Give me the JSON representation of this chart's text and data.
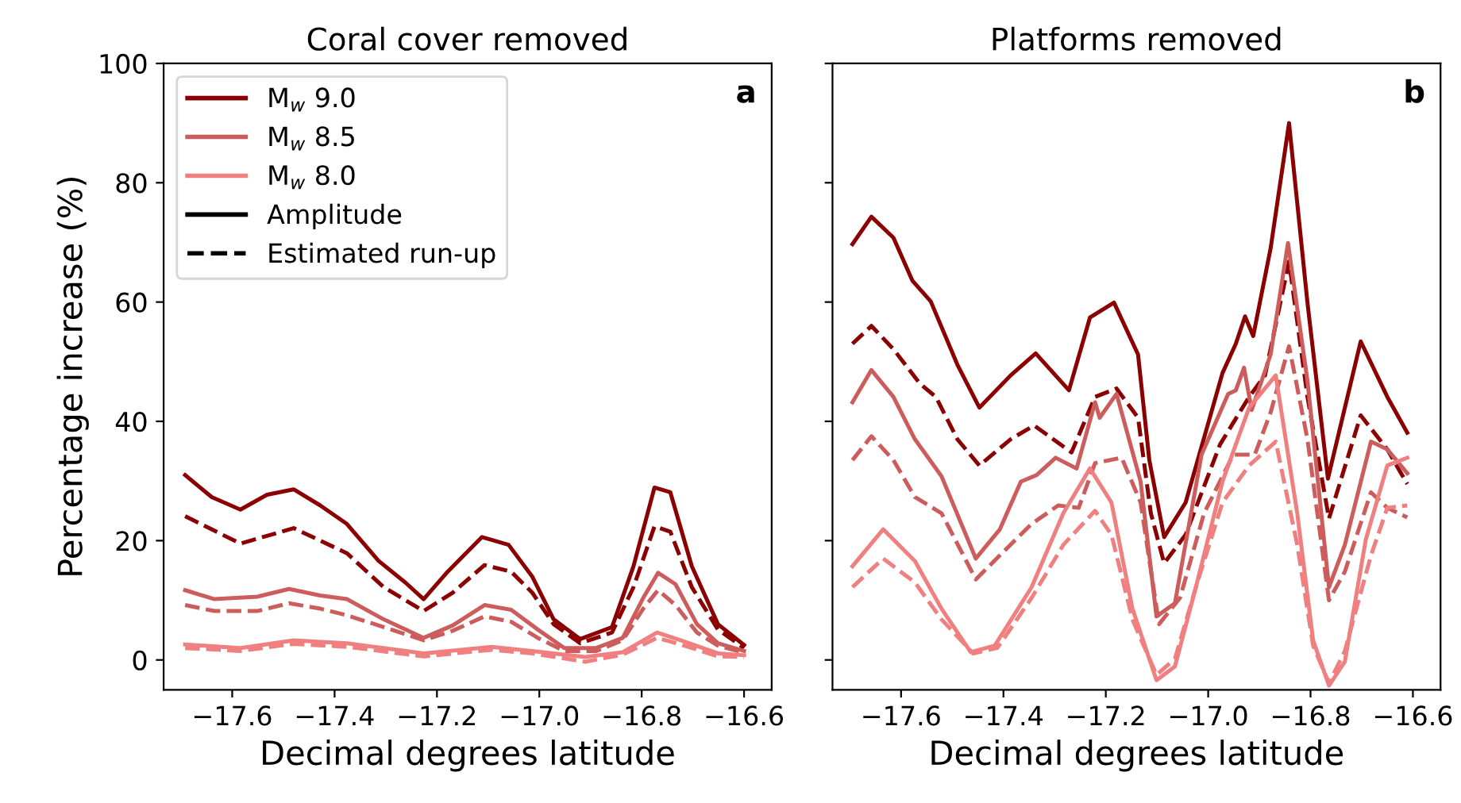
{
  "chart_data": [
    {
      "type": "line",
      "title": "Coral cover removed",
      "xlabel": "Decimal degrees latitude",
      "ylabel": "Percentage increase (%)",
      "xlim": [
        -17.734,
        -16.546
      ],
      "ylim": [
        -5,
        100
      ],
      "xticks": [
        {
          "value": -17.6,
          "label": "−17.6"
        },
        {
          "value": -17.4,
          "label": "−17.4"
        },
        {
          "value": -17.2,
          "label": "−17.2"
        },
        {
          "value": -17.0,
          "label": "−17.0"
        },
        {
          "value": -16.8,
          "label": "−16.8"
        },
        {
          "value": -16.6,
          "label": "−16.6"
        }
      ],
      "yticks": [
        0,
        20,
        40,
        60,
        80,
        100
      ],
      "grid": false,
      "legend": "top left",
      "annotations": [
        "a",
        "Amplitude",
        "Estimated run-up"
      ],
      "series": [
        {
          "name": "M$_{w}$ 9.0",
          "color": "#8b0000",
          "line_style": "solid",
          "x": [
            -17.692,
            -17.64,
            -17.584,
            -17.532,
            -17.48,
            -17.428,
            -17.376,
            -17.314,
            -17.262,
            -17.226,
            -17.179,
            -17.112,
            -17.06,
            -17.014,
            -16.972,
            -16.92,
            -16.858,
            -16.816,
            -16.775,
            -16.744,
            -16.702,
            -16.651,
            -16.6
          ],
          "values": [
            31.0,
            27.3,
            25.2,
            27.7,
            28.6,
            25.9,
            22.8,
            16.6,
            13.0,
            10.2,
            14.8,
            20.6,
            19.3,
            14.0,
            6.8,
            3.5,
            5.5,
            15.7,
            28.9,
            28.1,
            15.7,
            6.0,
            2.5
          ]
        },
        {
          "color": "#8b0000",
          "line_style": "dashed",
          "x": [
            -17.692,
            -17.584,
            -17.48,
            -17.376,
            -17.304,
            -17.226,
            -17.169,
            -17.107,
            -17.055,
            -17.014,
            -16.972,
            -16.92,
            -16.858,
            -16.816,
            -16.775,
            -16.744,
            -16.702,
            -16.651,
            -16.6
          ],
          "values": [
            24.1,
            19.5,
            22.1,
            17.9,
            12.2,
            8.2,
            11.3,
            15.9,
            14.8,
            11.3,
            6.0,
            2.8,
            4.6,
            12.2,
            22.4,
            21.5,
            12.2,
            5.1,
            2.0
          ]
        },
        {
          "name": "M$_{w}$ 8.5",
          "color": "#cd5c5c",
          "line_style": "solid",
          "x": [
            -17.692,
            -17.635,
            -17.551,
            -17.489,
            -17.428,
            -17.376,
            -17.304,
            -17.226,
            -17.169,
            -17.107,
            -17.055,
            -17.003,
            -16.951,
            -16.889,
            -16.837,
            -16.797,
            -16.768,
            -16.734,
            -16.692,
            -16.651,
            -16.6
          ],
          "values": [
            11.7,
            10.2,
            10.6,
            11.9,
            10.8,
            10.2,
            6.8,
            3.7,
            5.8,
            9.2,
            8.4,
            5.1,
            2.0,
            2.0,
            3.7,
            10.4,
            14.6,
            12.7,
            6.0,
            2.8,
            1.5
          ]
        },
        {
          "color": "#cd5c5c",
          "line_style": "dashed",
          "x": [
            -17.692,
            -17.635,
            -17.551,
            -17.489,
            -17.428,
            -17.376,
            -17.304,
            -17.226,
            -17.169,
            -17.107,
            -17.055,
            -17.003,
            -16.951,
            -16.889,
            -16.837,
            -16.797,
            -16.768,
            -16.734,
            -16.692,
            -16.651,
            -16.6
          ],
          "values": [
            9.2,
            8.2,
            8.2,
            9.5,
            8.6,
            7.5,
            5.5,
            3.3,
            4.9,
            7.3,
            6.4,
            3.7,
            1.5,
            1.5,
            3.3,
            8.6,
            11.7,
            9.2,
            4.6,
            2.4,
            1.2
          ]
        },
        {
          "name": "M$_{w}$ 8.0",
          "color": "#f08080",
          "line_style": "solid",
          "x": [
            -17.692,
            -17.584,
            -17.48,
            -17.376,
            -17.226,
            -17.093,
            -17.014,
            -16.91,
            -16.837,
            -16.77,
            -16.724,
            -16.651,
            -16.6
          ],
          "values": [
            2.6,
            2.0,
            3.3,
            2.8,
            1.1,
            2.2,
            1.5,
            0.5,
            1.3,
            4.6,
            3.3,
            1.1,
            0.8
          ]
        },
        {
          "color": "#f08080",
          "line_style": "dashed",
          "x": [
            -17.692,
            -17.584,
            -17.48,
            -17.376,
            -17.226,
            -17.093,
            -17.014,
            -16.91,
            -16.837,
            -16.77,
            -16.724,
            -16.651,
            -16.6
          ],
          "values": [
            2.0,
            1.5,
            2.7,
            2.2,
            0.6,
            1.7,
            1.1,
            -0.3,
            0.9,
            3.7,
            2.6,
            0.6,
            0.5
          ]
        }
      ]
    },
    {
      "type": "line",
      "title": "Platforms removed",
      "xlabel": "Decimal degrees latitude",
      "xlim": [
        -17.734,
        -16.546
      ],
      "ylim": [
        -5,
        100
      ],
      "xticks": [
        {
          "value": -17.6,
          "label": "−17.6"
        },
        {
          "value": -17.4,
          "label": "−17.4"
        },
        {
          "value": -17.2,
          "label": "−17.2"
        },
        {
          "value": -17.0,
          "label": "−17.0"
        },
        {
          "value": -16.8,
          "label": "−16.8"
        },
        {
          "value": -16.6,
          "label": "−16.6"
        }
      ],
      "yticks": [
        0,
        20,
        40,
        60,
        80,
        100
      ],
      "tick_labels": "x",
      "grid": false,
      "annotations": [
        "b"
      ],
      "series": [
        {
          "color": "#8b0000",
          "line_style": "solid",
          "x": [
            -17.695,
            -17.658,
            -17.615,
            -17.578,
            -17.542,
            -17.49,
            -17.447,
            -17.386,
            -17.337,
            -17.272,
            -17.231,
            -17.184,
            -17.137,
            -17.115,
            -17.086,
            -17.044,
            -16.972,
            -16.946,
            -16.928,
            -16.912,
            -16.878,
            -16.842,
            -16.806,
            -16.766,
            -16.702,
            -16.65,
            -16.611
          ],
          "values": [
            69.7,
            74.3,
            70.8,
            63.6,
            60.1,
            49.5,
            42.3,
            47.7,
            51.4,
            45.2,
            57.4,
            59.9,
            51.2,
            33.5,
            20.6,
            26.4,
            48.1,
            53.0,
            57.6,
            54.3,
            69.0,
            90.0,
            59.9,
            30.4,
            53.4,
            44.1,
            38.1
          ]
        },
        {
          "color": "#8b0000",
          "line_style": "dashed",
          "x": [
            -17.695,
            -17.658,
            -17.615,
            -17.563,
            -17.532,
            -17.49,
            -17.447,
            -17.386,
            -17.34,
            -17.267,
            -17.221,
            -17.179,
            -17.137,
            -17.112,
            -17.086,
            -17.044,
            -16.977,
            -16.92,
            -16.889,
            -16.842,
            -16.806,
            -16.764,
            -16.702,
            -16.65,
            -16.611
          ],
          "values": [
            53.0,
            56.0,
            52.1,
            46.3,
            44.1,
            37.0,
            32.6,
            37.0,
            39.3,
            34.8,
            44.1,
            45.5,
            40.6,
            24.6,
            16.2,
            21.0,
            36.1,
            44.1,
            47.7,
            66.8,
            44.1,
            23.7,
            41.0,
            35.3,
            29.5
          ]
        },
        {
          "color": "#cd5c5c",
          "line_style": "solid",
          "x": [
            -17.695,
            -17.658,
            -17.615,
            -17.573,
            -17.521,
            -17.454,
            -17.407,
            -17.366,
            -17.335,
            -17.298,
            -17.257,
            -17.221,
            -17.212,
            -17.179,
            -17.132,
            -17.101,
            -17.065,
            -17.013,
            -16.961,
            -16.946,
            -16.93,
            -16.915,
            -16.878,
            -16.844,
            -16.806,
            -16.764,
            -16.733,
            -16.682,
            -16.65,
            -16.611
          ],
          "values": [
            43.2,
            48.6,
            44.1,
            37.0,
            30.8,
            17.0,
            21.9,
            29.9,
            31.0,
            33.9,
            32.1,
            43.2,
            40.6,
            44.6,
            29.9,
            7.3,
            9.5,
            34.4,
            44.6,
            45.2,
            49.0,
            41.9,
            51.2,
            69.9,
            46.8,
            12.2,
            19.3,
            36.6,
            35.3,
            31.3
          ]
        },
        {
          "color": "#cd5c5c",
          "line_style": "dashed",
          "x": [
            -17.695,
            -17.658,
            -17.615,
            -17.573,
            -17.521,
            -17.454,
            -17.397,
            -17.345,
            -17.293,
            -17.253,
            -17.221,
            -17.169,
            -17.132,
            -17.096,
            -17.055,
            -17.008,
            -16.951,
            -16.909,
            -16.878,
            -16.842,
            -16.806,
            -16.764,
            -16.733,
            -16.682,
            -16.65,
            -16.611
          ],
          "values": [
            33.5,
            37.5,
            33.5,
            27.3,
            24.6,
            13.5,
            18.4,
            22.8,
            25.9,
            25.5,
            33.0,
            33.9,
            26.4,
            6.0,
            10.4,
            24.6,
            34.4,
            34.4,
            41.5,
            52.6,
            37.0,
            10.0,
            14.8,
            28.1,
            25.5,
            23.9
          ]
        },
        {
          "color": "#f08080",
          "line_style": "solid",
          "x": [
            -17.695,
            -17.635,
            -17.573,
            -17.521,
            -17.464,
            -17.417,
            -17.345,
            -17.283,
            -17.231,
            -17.189,
            -17.148,
            -17.101,
            -17.065,
            -17.024,
            -16.972,
            -16.92,
            -16.868,
            -16.826,
            -16.795,
            -16.764,
            -16.733,
            -16.692,
            -16.65,
            -16.611
          ],
          "values": [
            15.7,
            21.9,
            16.6,
            8.6,
            1.3,
            2.4,
            12.2,
            24.6,
            32.1,
            26.4,
            8.6,
            -3.4,
            -1.1,
            12.2,
            29.9,
            42.3,
            47.7,
            24.6,
            3.3,
            -4.3,
            -0.3,
            20.2,
            32.6,
            33.9
          ]
        },
        {
          "color": "#f08080",
          "line_style": "dashed",
          "x": [
            -17.695,
            -17.635,
            -17.573,
            -17.521,
            -17.459,
            -17.412,
            -17.345,
            -17.283,
            -17.221,
            -17.189,
            -17.148,
            -17.101,
            -17.065,
            -17.024,
            -16.972,
            -16.92,
            -16.868,
            -16.826,
            -16.795,
            -16.764,
            -16.733,
            -16.682,
            -16.65,
            -16.611
          ],
          "values": [
            12.2,
            17.0,
            13.0,
            6.8,
            1.1,
            2.0,
            10.4,
            19.3,
            25.0,
            21.0,
            6.8,
            -2.5,
            0.2,
            12.2,
            26.4,
            32.6,
            36.6,
            19.3,
            2.4,
            -3.9,
            1.5,
            17.5,
            25.5,
            25.9
          ]
        }
      ]
    }
  ]
}
